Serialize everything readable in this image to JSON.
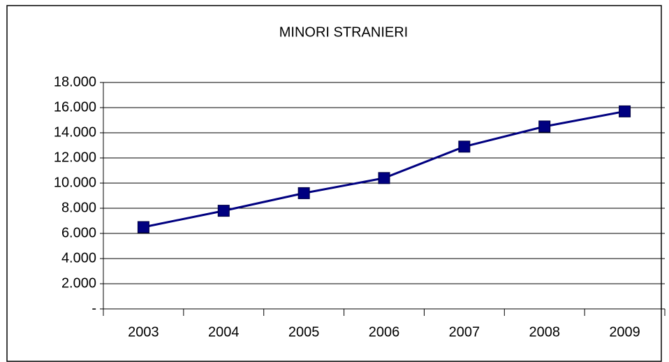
{
  "chart_data": {
    "type": "line",
    "title": "MINORI STRANIERI",
    "categories": [
      "2003",
      "2004",
      "2005",
      "2006",
      "2007",
      "2008",
      "2009"
    ],
    "values": [
      6500,
      7800,
      9200,
      10400,
      12900,
      14500,
      15700
    ],
    "color": "#000080",
    "ylim": [
      0,
      18000
    ],
    "yticks": [
      {
        "value": 0,
        "label": "-"
      },
      {
        "value": 2000,
        "label": "2.000"
      },
      {
        "value": 4000,
        "label": "4.000"
      },
      {
        "value": 6000,
        "label": "6.000"
      },
      {
        "value": 8000,
        "label": "8.000"
      },
      {
        "value": 10000,
        "label": "10.000"
      },
      {
        "value": 12000,
        "label": "12.000"
      },
      {
        "value": 14000,
        "label": "14.000"
      },
      {
        "value": 16000,
        "label": "16.000"
      },
      {
        "value": 18000,
        "label": "18.000"
      }
    ],
    "grid": true
  }
}
